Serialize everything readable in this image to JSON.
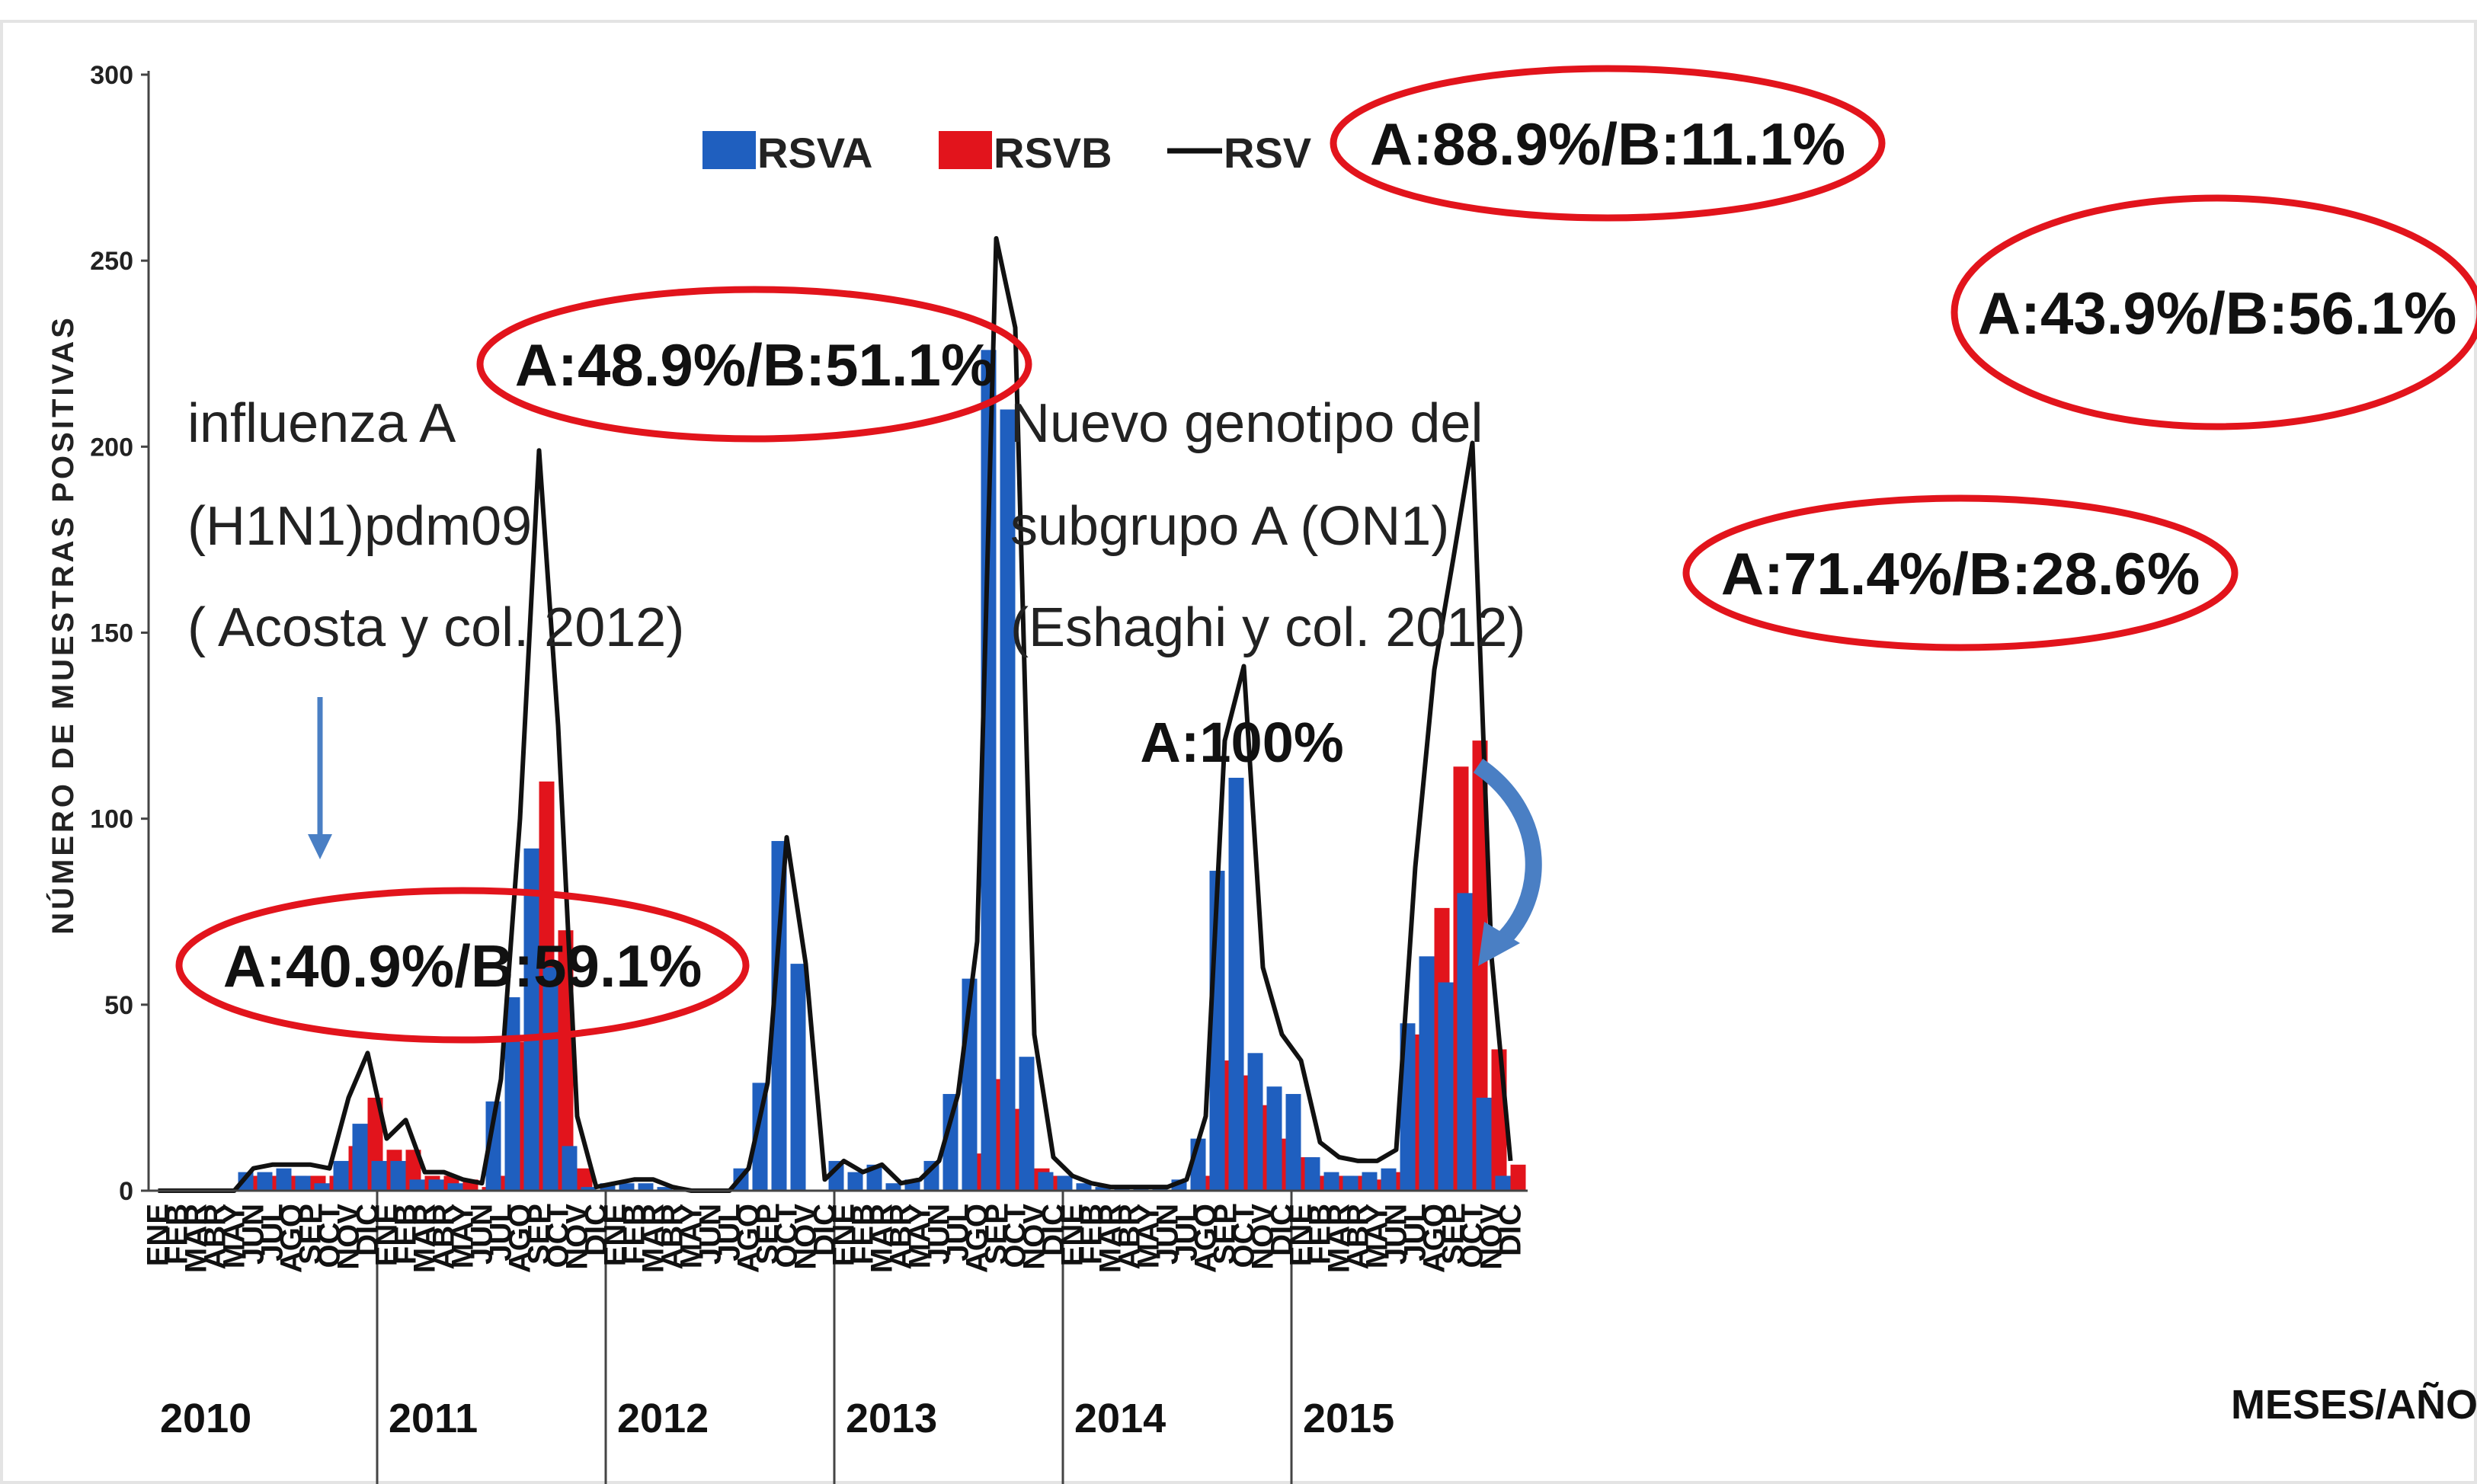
{
  "chart_data": {
    "type": "bar",
    "ylabel": "NÚMERO DE MUESTRAS POSITIVAS",
    "xlabel": "MESES/AÑOS",
    "ylim": [
      0,
      300
    ],
    "yticks": [
      "0",
      "50",
      "100",
      "150",
      "200",
      "250",
      "300"
    ],
    "months": [
      "ENE",
      "FEB",
      "MAR",
      "ABR",
      "MAY",
      "JUN",
      "JUL",
      "AGO",
      "SEP",
      "OCT",
      "NOV",
      "DIC"
    ],
    "years": [
      "2010",
      "2011",
      "2012",
      "2013",
      "2014",
      "2015"
    ],
    "legend": {
      "a": "RSVA",
      "b": "RSVB",
      "total": "RSV"
    },
    "colors": {
      "a": "#1f5fbf",
      "b": "#e2141c",
      "total": "#111111",
      "ellipse": "#e2141c",
      "arrow": "#4a7fc4"
    },
    "series": [
      {
        "name": "RSVA",
        "values": [
          0,
          0,
          0,
          0,
          0,
          5,
          5,
          6,
          4,
          2,
          8,
          18,
          8,
          8,
          3,
          3,
          2,
          0,
          24,
          52,
          92,
          60,
          12,
          1,
          2,
          2,
          2,
          1,
          0,
          0,
          0,
          6,
          29,
          94,
          61,
          0,
          8,
          5,
          7,
          2,
          3,
          8,
          26,
          57,
          226,
          210,
          36,
          5,
          4,
          2,
          1,
          1,
          1,
          1,
          3,
          14,
          86,
          111,
          37,
          28,
          26,
          9,
          5,
          4,
          5,
          6,
          45,
          63,
          56,
          80,
          25,
          4
        ]
      },
      {
        "name": "RSVB",
        "values": [
          0,
          0,
          0,
          0,
          0,
          4,
          4,
          4,
          4,
          4,
          12,
          25,
          11,
          11,
          4,
          4,
          3,
          1,
          4,
          40,
          110,
          70,
          6,
          0,
          0,
          0,
          0,
          0,
          0,
          0,
          0,
          0,
          0,
          0,
          0,
          0,
          0,
          0,
          0,
          0,
          0,
          0,
          0,
          10,
          30,
          22,
          6,
          4,
          0,
          0,
          0,
          0,
          0,
          0,
          0,
          4,
          35,
          31,
          23,
          14,
          9,
          4,
          4,
          4,
          3,
          5,
          42,
          76,
          114,
          121,
          38,
          7
        ]
      },
      {
        "name": "RSV",
        "values": [
          0,
          0,
          0,
          0,
          0,
          6,
          7,
          7,
          7,
          6,
          25,
          37,
          14,
          19,
          5,
          5,
          3,
          2,
          30,
          100,
          199,
          125,
          20,
          1,
          2,
          3,
          3,
          1,
          0,
          0,
          0,
          6,
          29,
          95,
          61,
          3,
          8,
          5,
          7,
          2,
          3,
          8,
          26,
          67,
          256,
          232,
          42,
          9,
          4,
          2,
          1,
          1,
          1,
          1,
          3,
          20,
          121,
          141,
          60,
          42,
          35,
          13,
          9,
          8,
          8,
          11,
          87,
          140,
          170,
          201,
          63,
          8
        ]
      }
    ],
    "annotations": {
      "r2010": "A:40.9%/B:59.1%",
      "r2011": "A:48.9%/B:51.1%",
      "r2012": "A:100%",
      "r2013": "A:88.9%/B:11.1%",
      "r2014": "A:71.4%/B:28.6%",
      "r2015": "A:43.9%/B:56.1%",
      "flu1": "influenza A",
      "flu2": "(H1N1)pdm09",
      "flu3": "( Acosta y col. 2012)",
      "on1_1": "Nuevo genotipo del",
      "on1_2": "subgrupo A (ON1)",
      "on1_3": "(Eshaghi y col. 2012)"
    }
  }
}
